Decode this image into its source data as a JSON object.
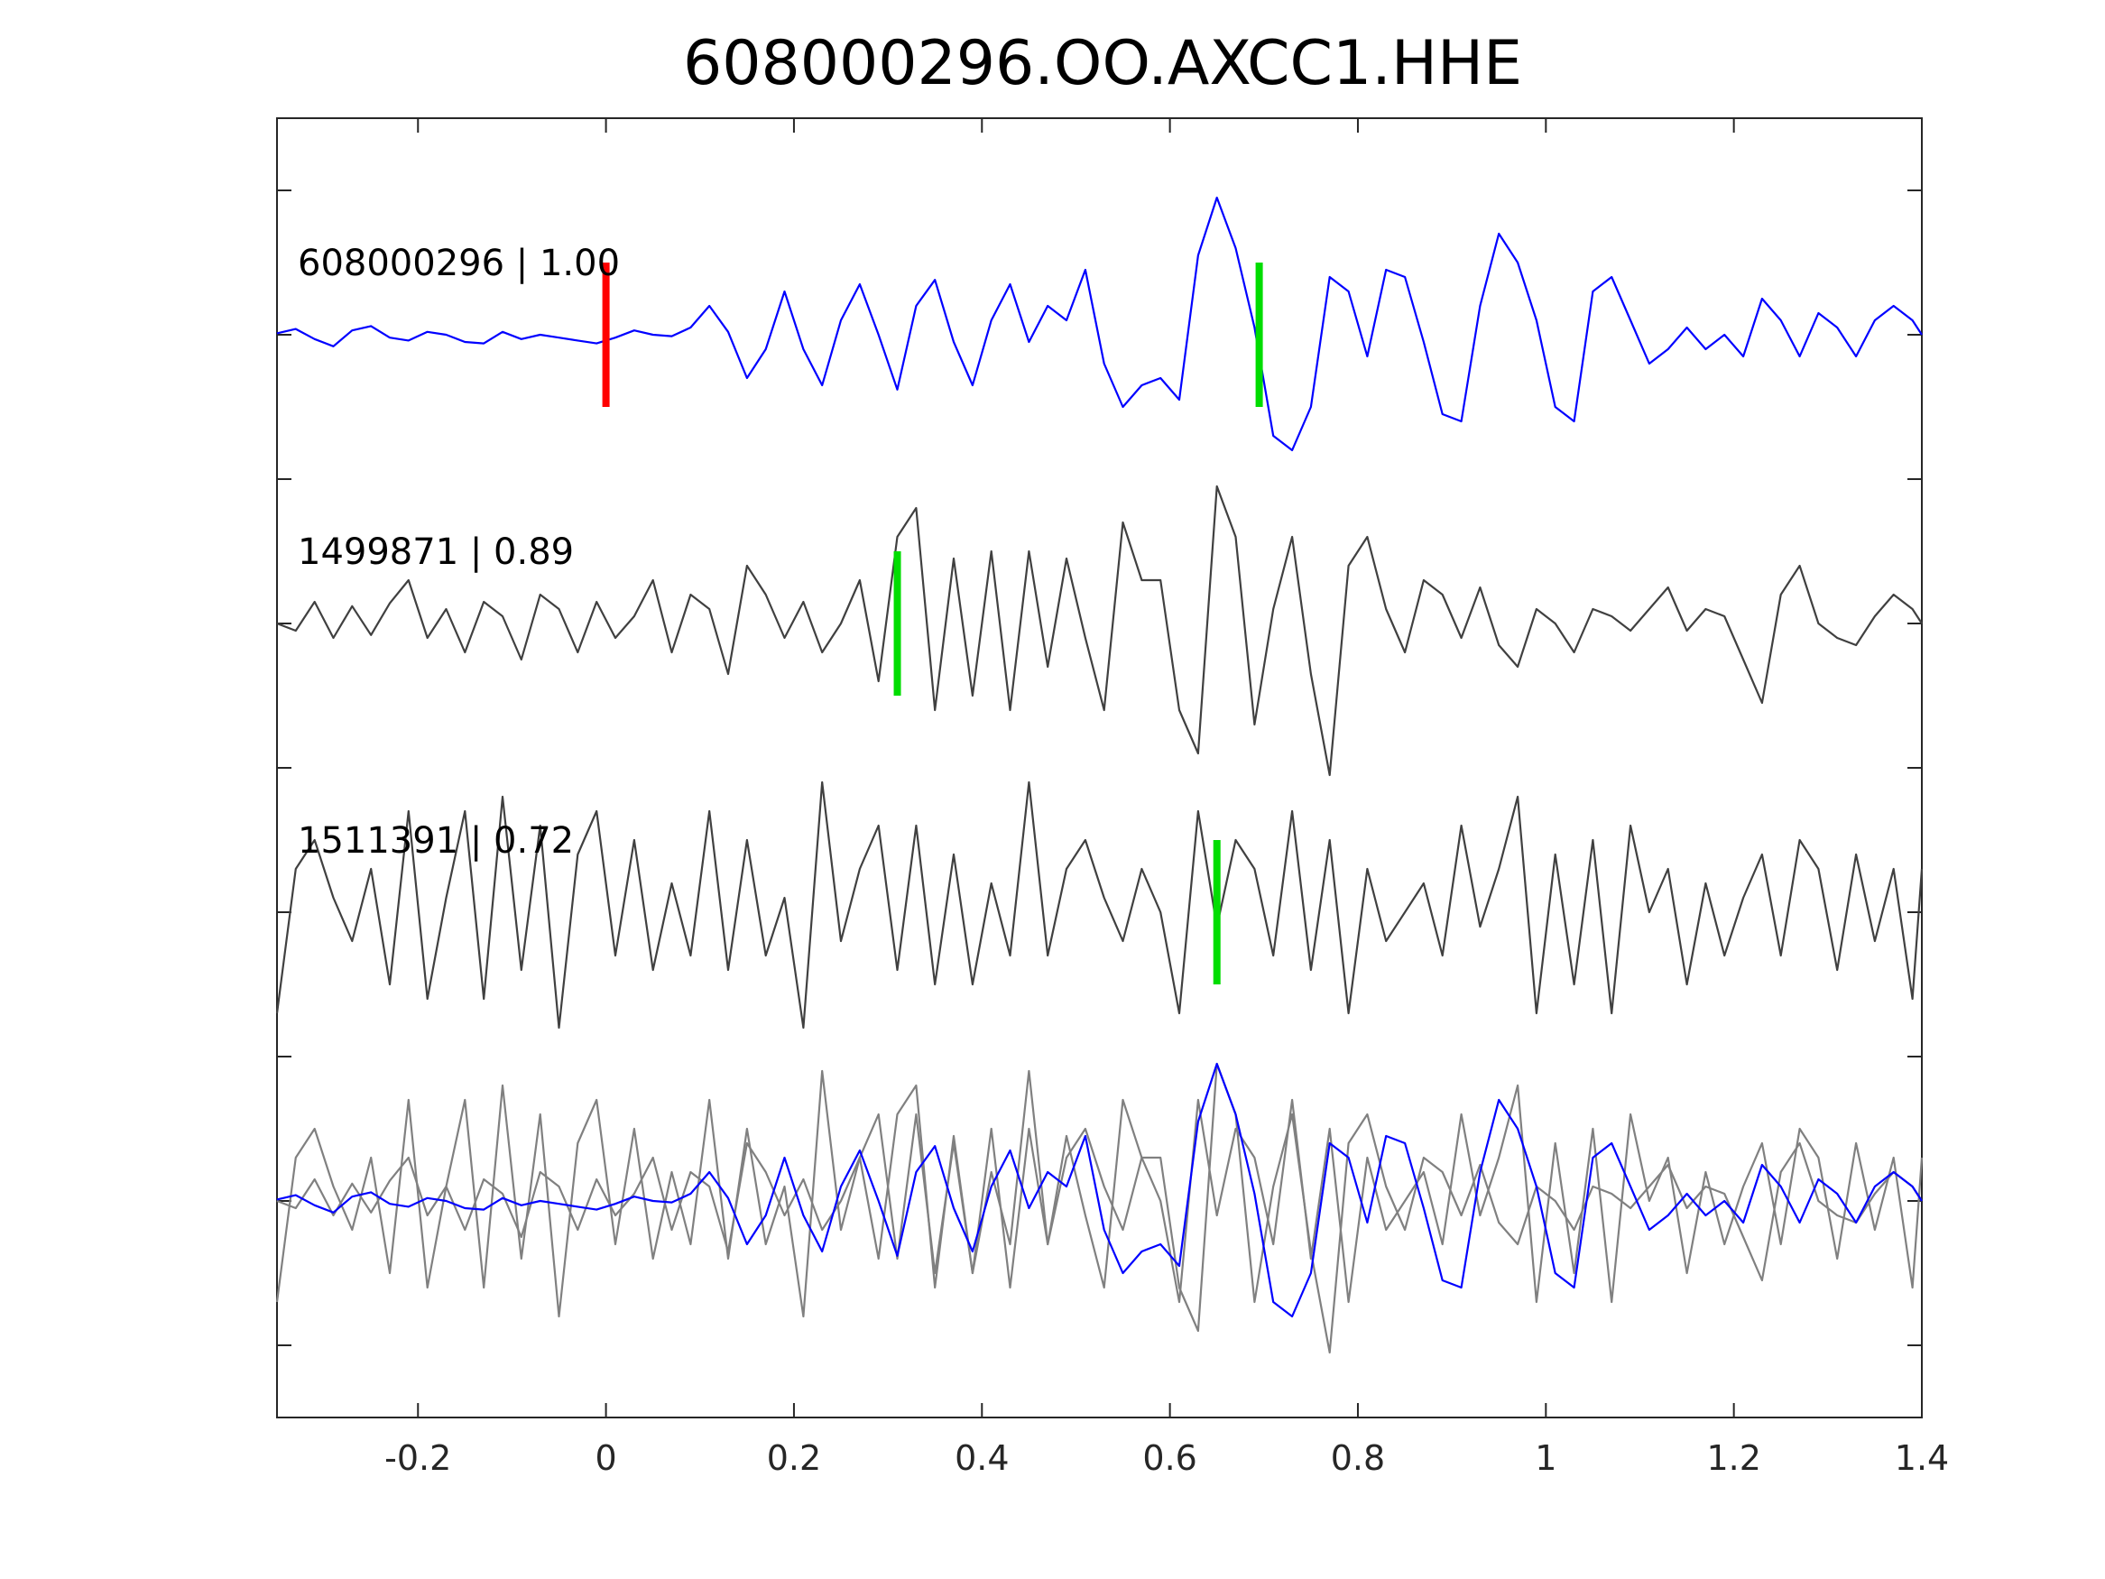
{
  "chart_data": {
    "type": "line",
    "title": "608000296.OO.AXCC1.HHE",
    "xlabel": "",
    "ylabel": "",
    "xlim": [
      -0.35,
      1.4
    ],
    "ylim": [
      -7.5,
      1.5
    ],
    "grid": false,
    "x_ticks": [
      -0.2,
      0,
      0.2,
      0.4,
      0.6,
      0.8,
      1.0,
      1.2,
      1.4
    ],
    "x_tick_labels": [
      "-0.2",
      "0",
      "0.2",
      "0.4",
      "0.6",
      "0.8",
      "1",
      "1.2",
      "1.4"
    ],
    "y_ticks": [
      -7,
      -6,
      -5,
      -4,
      -3,
      -2,
      -1,
      0,
      1
    ],
    "colors": {
      "template": "#0000ff",
      "neighbor": "#404040",
      "overlay_neighbor": "#808080",
      "p_pick": "#ff0000",
      "s_pick": "#00dd00",
      "axes": "#262626"
    },
    "series": [
      {
        "label": "608000296 | 1.00",
        "baseline": 0,
        "role": "template",
        "x": [
          -0.35,
          -0.33,
          -0.31,
          -0.29,
          -0.27,
          -0.25,
          -0.23,
          -0.21,
          -0.19,
          -0.17,
          -0.15,
          -0.13,
          -0.11,
          -0.09,
          -0.07,
          -0.05,
          -0.03,
          -0.01,
          0.01,
          0.03,
          0.05,
          0.07,
          0.09,
          0.11,
          0.13,
          0.15,
          0.17,
          0.19,
          0.21,
          0.23,
          0.25,
          0.27,
          0.29,
          0.31,
          0.33,
          0.35,
          0.37,
          0.39,
          0.41,
          0.43,
          0.45,
          0.47,
          0.49,
          0.51,
          0.53,
          0.55,
          0.57,
          0.59,
          0.61,
          0.63,
          0.65,
          0.67,
          0.69,
          0.71,
          0.73,
          0.75,
          0.77,
          0.79,
          0.81,
          0.83,
          0.85,
          0.87,
          0.89,
          0.91,
          0.93,
          0.95,
          0.97,
          0.99,
          1.01,
          1.03,
          1.05,
          1.07,
          1.09,
          1.11,
          1.13,
          1.15,
          1.17,
          1.19,
          1.21,
          1.23,
          1.25,
          1.27,
          1.29,
          1.31,
          1.33,
          1.35,
          1.37,
          1.39,
          1.4
        ],
        "y": [
          0.01,
          0.04,
          -0.03,
          -0.08,
          0.03,
          0.06,
          -0.02,
          -0.04,
          0.02,
          0.0,
          -0.05,
          -0.06,
          0.02,
          -0.03,
          0.0,
          -0.02,
          -0.04,
          -0.06,
          -0.02,
          0.03,
          0.0,
          -0.01,
          0.05,
          0.2,
          0.02,
          -0.3,
          -0.1,
          0.3,
          -0.1,
          -0.35,
          0.1,
          0.35,
          0.0,
          -0.38,
          0.2,
          0.38,
          -0.05,
          -0.35,
          0.1,
          0.35,
          -0.05,
          0.2,
          0.1,
          0.45,
          -0.2,
          -0.5,
          -0.35,
          -0.3,
          -0.45,
          0.55,
          0.95,
          0.6,
          0.05,
          -0.7,
          -0.8,
          -0.5,
          0.4,
          0.3,
          -0.15,
          0.45,
          0.4,
          -0.05,
          -0.55,
          -0.6,
          0.2,
          0.7,
          0.5,
          0.1,
          -0.5,
          -0.6,
          0.3,
          0.4,
          0.1,
          -0.2,
          -0.1,
          0.05,
          -0.1,
          0.0,
          -0.15,
          0.25,
          0.1,
          -0.15,
          0.15,
          0.05,
          -0.15,
          0.1,
          0.2,
          0.1,
          0.0
        ]
      },
      {
        "label": "1499871 | 0.89",
        "baseline": -2,
        "role": "neighbor",
        "x": [
          -0.35,
          -0.33,
          -0.31,
          -0.29,
          -0.27,
          -0.25,
          -0.23,
          -0.21,
          -0.19,
          -0.17,
          -0.15,
          -0.13,
          -0.11,
          -0.09,
          -0.07,
          -0.05,
          -0.03,
          -0.01,
          0.01,
          0.03,
          0.05,
          0.07,
          0.09,
          0.11,
          0.13,
          0.15,
          0.17,
          0.19,
          0.21,
          0.23,
          0.25,
          0.27,
          0.29,
          0.31,
          0.33,
          0.35,
          0.37,
          0.39,
          0.41,
          0.43,
          0.45,
          0.47,
          0.49,
          0.51,
          0.53,
          0.55,
          0.57,
          0.59,
          0.61,
          0.63,
          0.65,
          0.67,
          0.69,
          0.71,
          0.73,
          0.75,
          0.77,
          0.79,
          0.81,
          0.83,
          0.85,
          0.87,
          0.89,
          0.91,
          0.93,
          0.95,
          0.97,
          0.99,
          1.01,
          1.03,
          1.05,
          1.07,
          1.09,
          1.11,
          1.13,
          1.15,
          1.17,
          1.19,
          1.21,
          1.23,
          1.25,
          1.27,
          1.29,
          1.31,
          1.33,
          1.35,
          1.37,
          1.39,
          1.4
        ],
        "y": [
          0.0,
          -0.05,
          0.15,
          -0.1,
          0.12,
          -0.08,
          0.14,
          0.3,
          -0.1,
          0.1,
          -0.2,
          0.15,
          0.05,
          -0.25,
          0.2,
          0.1,
          -0.2,
          0.15,
          -0.1,
          0.05,
          0.3,
          -0.2,
          0.2,
          0.1,
          -0.35,
          0.4,
          0.2,
          -0.1,
          0.15,
          -0.2,
          0.0,
          0.3,
          -0.4,
          0.6,
          0.8,
          -0.6,
          0.45,
          -0.5,
          0.5,
          -0.6,
          0.5,
          -0.3,
          0.45,
          -0.1,
          -0.6,
          0.7,
          0.3,
          0.3,
          -0.6,
          -0.9,
          0.95,
          0.6,
          -0.7,
          0.1,
          0.6,
          -0.35,
          -1.05,
          0.4,
          0.6,
          0.1,
          -0.2,
          0.3,
          0.2,
          -0.1,
          0.25,
          -0.15,
          -0.3,
          0.1,
          0.0,
          -0.2,
          0.1,
          0.05,
          -0.05,
          0.1,
          0.25,
          -0.05,
          0.1,
          0.05,
          -0.25,
          -0.55,
          0.2,
          0.4,
          0.0,
          -0.1,
          -0.15,
          0.05,
          0.2,
          0.1,
          0.0
        ]
      },
      {
        "label": "1511391 | 0.72",
        "baseline": -4,
        "role": "neighbor",
        "x": [
          -0.35,
          -0.33,
          -0.31,
          -0.29,
          -0.27,
          -0.25,
          -0.23,
          -0.21,
          -0.19,
          -0.17,
          -0.15,
          -0.13,
          -0.11,
          -0.09,
          -0.07,
          -0.05,
          -0.03,
          -0.01,
          0.01,
          0.03,
          0.05,
          0.07,
          0.09,
          0.11,
          0.13,
          0.15,
          0.17,
          0.19,
          0.21,
          0.23,
          0.25,
          0.27,
          0.29,
          0.31,
          0.33,
          0.35,
          0.37,
          0.39,
          0.41,
          0.43,
          0.45,
          0.47,
          0.49,
          0.51,
          0.53,
          0.55,
          0.57,
          0.59,
          0.61,
          0.63,
          0.65,
          0.67,
          0.69,
          0.71,
          0.73,
          0.75,
          0.77,
          0.79,
          0.81,
          0.83,
          0.85,
          0.87,
          0.89,
          0.91,
          0.93,
          0.95,
          0.97,
          0.99,
          1.01,
          1.03,
          1.05,
          1.07,
          1.09,
          1.11,
          1.13,
          1.15,
          1.17,
          1.19,
          1.21,
          1.23,
          1.25,
          1.27,
          1.29,
          1.31,
          1.33,
          1.35,
          1.37,
          1.39,
          1.4
        ],
        "y": [
          -0.7,
          0.3,
          0.5,
          0.1,
          -0.2,
          0.3,
          -0.5,
          0.7,
          -0.6,
          0.1,
          0.7,
          -0.6,
          0.8,
          -0.4,
          0.6,
          -0.8,
          0.4,
          0.7,
          -0.3,
          0.5,
          -0.4,
          0.2,
          -0.3,
          0.7,
          -0.4,
          0.5,
          -0.3,
          0.1,
          -0.8,
          0.9,
          -0.2,
          0.3,
          0.6,
          -0.4,
          0.6,
          -0.5,
          0.4,
          -0.5,
          0.2,
          -0.3,
          0.9,
          -0.3,
          0.3,
          0.5,
          0.1,
          -0.2,
          0.3,
          0.0,
          -0.7,
          0.7,
          -0.1,
          0.5,
          0.3,
          -0.3,
          0.7,
          -0.4,
          0.5,
          -0.7,
          0.3,
          -0.2,
          0.0,
          0.2,
          -0.3,
          0.6,
          -0.1,
          0.3,
          0.8,
          -0.7,
          0.4,
          -0.5,
          0.5,
          -0.7,
          0.6,
          0.0,
          0.3,
          -0.5,
          0.2,
          -0.3,
          0.1,
          0.4,
          -0.3,
          0.5,
          0.3,
          -0.4,
          0.4,
          -0.2,
          0.3,
          -0.6,
          0.3
        ]
      }
    ],
    "picks": [
      {
        "series": 0,
        "x": 0.0,
        "color": "red"
      },
      {
        "series": 0,
        "x": 0.695,
        "color": "green"
      },
      {
        "series": 1,
        "x": 0.31,
        "color": "green"
      },
      {
        "series": 2,
        "x": 0.65,
        "color": "green"
      }
    ],
    "overlay": {
      "baseline": -6,
      "series_indices": [
        1,
        2,
        0
      ]
    }
  }
}
